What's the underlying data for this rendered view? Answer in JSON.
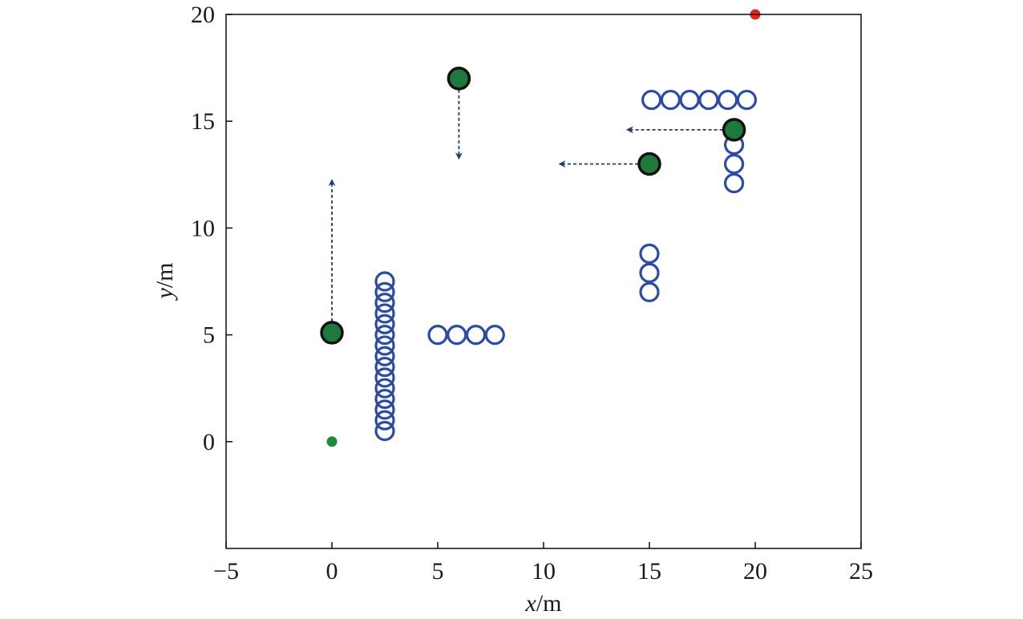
{
  "chart_data": {
    "type": "scatter",
    "title": "",
    "xlabel": {
      "var": "x",
      "unit": "/m"
    },
    "ylabel": {
      "var": "y",
      "unit": "/m"
    },
    "xlim": [
      -5,
      25
    ],
    "ylim": [
      -5,
      20
    ],
    "xticks": [
      "−5",
      "0",
      "5",
      "10",
      "15",
      "20",
      "25"
    ],
    "yticks": [
      "0",
      "5",
      "10",
      "15",
      "20"
    ],
    "xtick_values": [
      -5,
      0,
      5,
      10,
      15,
      20,
      25
    ],
    "ytick_values": [
      0,
      5,
      10,
      15,
      20
    ],
    "grid": false,
    "legend": "none",
    "colors": {
      "obstacle": "#2c4ba6",
      "dynamic_obstacle": "#1d7a3c",
      "arrow": "#1f3d66",
      "start": "#1d8a3a",
      "goal": "#e8231c"
    },
    "start_point": {
      "x": 0,
      "y": 0
    },
    "goal_point": {
      "x": 20,
      "y": 20
    },
    "static_obstacles": [
      {
        "x": 2.5,
        "y": 0.5
      },
      {
        "x": 2.5,
        "y": 1.0
      },
      {
        "x": 2.5,
        "y": 1.5
      },
      {
        "x": 2.5,
        "y": 2.0
      },
      {
        "x": 2.5,
        "y": 2.5
      },
      {
        "x": 2.5,
        "y": 3.0
      },
      {
        "x": 2.5,
        "y": 3.5
      },
      {
        "x": 2.5,
        "y": 4.0
      },
      {
        "x": 2.5,
        "y": 4.5
      },
      {
        "x": 2.5,
        "y": 5.0
      },
      {
        "x": 2.5,
        "y": 5.5
      },
      {
        "x": 2.5,
        "y": 6.0
      },
      {
        "x": 2.5,
        "y": 6.5
      },
      {
        "x": 2.5,
        "y": 7.0
      },
      {
        "x": 2.5,
        "y": 7.5
      },
      {
        "x": 5.0,
        "y": 5.0
      },
      {
        "x": 5.9,
        "y": 5.0
      },
      {
        "x": 6.8,
        "y": 5.0
      },
      {
        "x": 7.7,
        "y": 5.0
      },
      {
        "x": 15.0,
        "y": 7.0
      },
      {
        "x": 15.0,
        "y": 7.9
      },
      {
        "x": 15.0,
        "y": 8.8
      },
      {
        "x": 15.1,
        "y": 16.0
      },
      {
        "x": 16.0,
        "y": 16.0
      },
      {
        "x": 16.9,
        "y": 16.0
      },
      {
        "x": 17.8,
        "y": 16.0
      },
      {
        "x": 18.7,
        "y": 16.0
      },
      {
        "x": 19.6,
        "y": 16.0
      },
      {
        "x": 19.0,
        "y": 12.1
      },
      {
        "x": 19.0,
        "y": 13.0
      },
      {
        "x": 19.0,
        "y": 13.9
      }
    ],
    "dynamic_obstacles": [
      {
        "x": 0,
        "y": 5.1,
        "to_x": 0,
        "to_y": 12.2
      },
      {
        "x": 6.0,
        "y": 17.0,
        "to_x": 6.0,
        "to_y": 13.3
      },
      {
        "x": 15.0,
        "y": 13.0,
        "to_x": 10.8,
        "to_y": 13.0
      },
      {
        "x": 19.0,
        "y": 14.6,
        "to_x": 14.0,
        "to_y": 14.6
      }
    ]
  }
}
